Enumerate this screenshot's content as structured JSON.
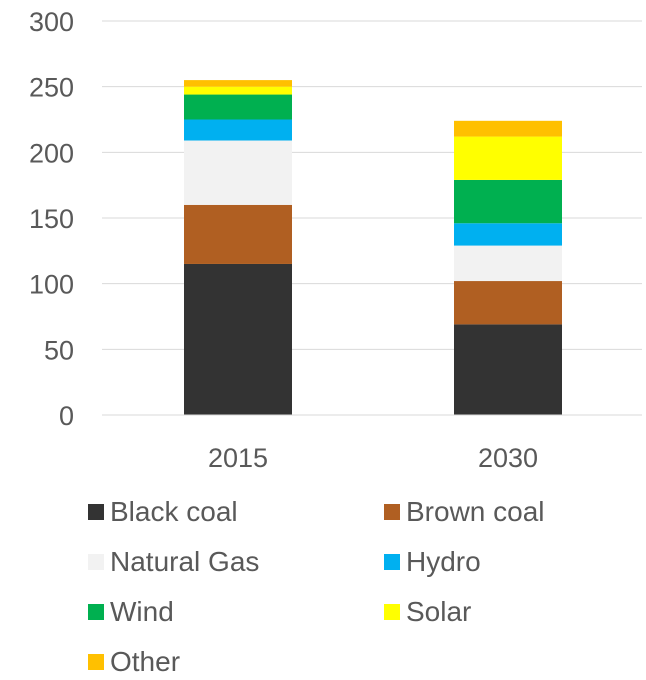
{
  "chart_data": {
    "type": "bar",
    "stacked": true,
    "categories": [
      "2015",
      "2030"
    ],
    "series": [
      {
        "name": "Black coal",
        "color": "#333333",
        "values": [
          115,
          69
        ]
      },
      {
        "name": "Brown coal",
        "color": "#B05F22",
        "values": [
          45,
          33
        ]
      },
      {
        "name": "Natural Gas",
        "color": "#F2F2F2",
        "values": [
          49,
          27
        ]
      },
      {
        "name": "Hydro",
        "color": "#00B0F0",
        "values": [
          16,
          17
        ]
      },
      {
        "name": "Wind",
        "color": "#00B050",
        "values": [
          19,
          33
        ]
      },
      {
        "name": "Solar",
        "color": "#FFFF00",
        "values": [
          6,
          33
        ]
      },
      {
        "name": "Other",
        "color": "#FFC000",
        "values": [
          5,
          12
        ]
      }
    ],
    "ylim": [
      0,
      300
    ],
    "yticks": [
      0,
      50,
      100,
      150,
      200,
      250,
      300
    ],
    "title": "",
    "xlabel": "",
    "ylabel": "",
    "grid": true,
    "legend_position": "bottom"
  }
}
